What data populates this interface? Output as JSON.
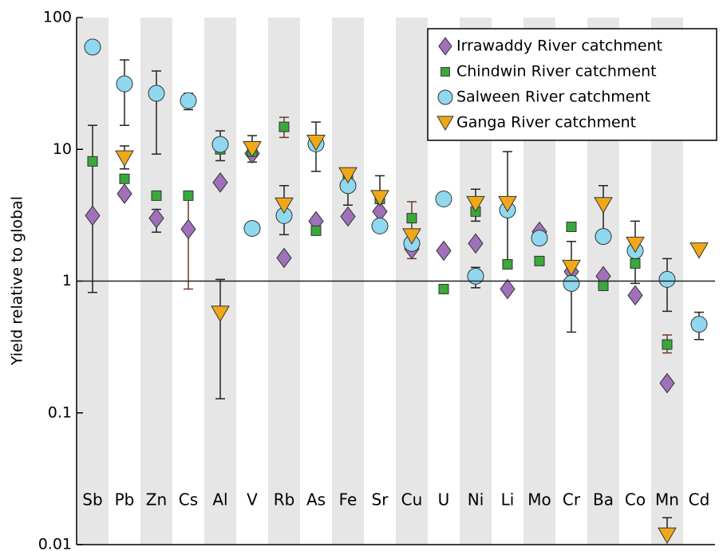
{
  "chart_data": {
    "type": "scatter",
    "y_label": "Yield relative to global",
    "yscale": "log",
    "ylim": [
      0.01,
      100
    ],
    "yticks": [
      0.01,
      0.1,
      1,
      10,
      100
    ],
    "hline": 1,
    "categories": [
      "Sb",
      "Pb",
      "Zn",
      "Cs",
      "Al",
      "V",
      "Rb",
      "As",
      "Fe",
      "Sr",
      "Cu",
      "U",
      "Ni",
      "Li",
      "Mo",
      "Cr",
      "Ba",
      "Co",
      "Mn",
      "Cd"
    ],
    "series": [
      {
        "name": "Irrawaddy River catchment",
        "color": "#a070b8",
        "marker": "diamond",
        "values": [
          3.14,
          4.6,
          3.0,
          2.48,
          5.6,
          9.3,
          1.5,
          2.85,
          3.09,
          3.37,
          1.75,
          1.7,
          1.93,
          0.87,
          2.37,
          1.18,
          1.09,
          0.78,
          0.168,
          null
        ],
        "upper": [
          15.2,
          null,
          3.5,
          null,
          null,
          null,
          null,
          null,
          null,
          null,
          null,
          null,
          null,
          null,
          null,
          null,
          null,
          null,
          null,
          null
        ],
        "lower": [
          0.82,
          null,
          2.35,
          null,
          null,
          null,
          null,
          null,
          null,
          null,
          null,
          null,
          null,
          null,
          null,
          null,
          null,
          null,
          null,
          null
        ]
      },
      {
        "name": "Chindwin River catchment",
        "color": "#3aa83a",
        "marker": "square",
        "values": [
          8.1,
          5.97,
          4.45,
          4.45,
          10,
          9.6,
          14.8,
          2.41,
          6.1,
          4.2,
          3.0,
          0.87,
          3.37,
          1.34,
          1.42,
          2.58,
          0.92,
          1.36,
          0.33,
          null
        ],
        "upper": [
          null,
          null,
          null,
          4.45,
          null,
          null,
          17.5,
          null,
          null,
          null,
          4.0,
          null,
          null,
          null,
          null,
          null,
          null,
          null,
          0.39,
          null
        ],
        "lower": [
          null,
          null,
          null,
          0.87,
          null,
          null,
          12.3,
          null,
          null,
          null,
          1.48,
          null,
          null,
          null,
          null,
          null,
          null,
          null,
          0.285,
          null
        ]
      },
      {
        "name": "Salween River catchment",
        "color": "#8fd8ef",
        "marker": "circle",
        "values": [
          59.7,
          31.4,
          26.6,
          23.4,
          10.9,
          2.51,
          3.14,
          10.99,
          5.3,
          2.62,
          1.93,
          4.2,
          1.09,
          3.46,
          2.12,
          0.96,
          2.18,
          1.7,
          1.03,
          0.47
        ],
        "upper": [
          null,
          47.7,
          39.3,
          26.6,
          13.8,
          null,
          null,
          null,
          6.8,
          null,
          null,
          null,
          1.27,
          null,
          null,
          null,
          null,
          null,
          1.48,
          0.58
        ],
        "lower": [
          null,
          15.2,
          9.2,
          20,
          8.2,
          null,
          null,
          null,
          3.77,
          null,
          null,
          null,
          0.89,
          null,
          null,
          null,
          null,
          null,
          0.59,
          0.36
        ]
      },
      {
        "name": "Ganga River catchment",
        "color": "#f0a818",
        "marker": "triangle-down",
        "values": [
          null,
          8.6,
          null,
          null,
          0.57,
          10.1,
          3.77,
          11.3,
          6.4,
          4.3,
          2.2,
          null,
          3.87,
          3.87,
          null,
          1.27,
          3.8,
          1.9,
          0.0118,
          1.72
        ],
        "upper": [
          null,
          10.6,
          null,
          null,
          1.03,
          12.7,
          5.3,
          16.1,
          null,
          6.3,
          null,
          null,
          4.98,
          9.6,
          null,
          2.0,
          5.3,
          2.85,
          0.016,
          null
        ],
        "lower": [
          null,
          7.1,
          null,
          null,
          0.128,
          8.0,
          2.25,
          6.8,
          null,
          2.62,
          null,
          null,
          2.85,
          1.34,
          null,
          0.41,
          2.18,
          0.96,
          null,
          null
        ]
      }
    ],
    "legend": "upper right"
  }
}
